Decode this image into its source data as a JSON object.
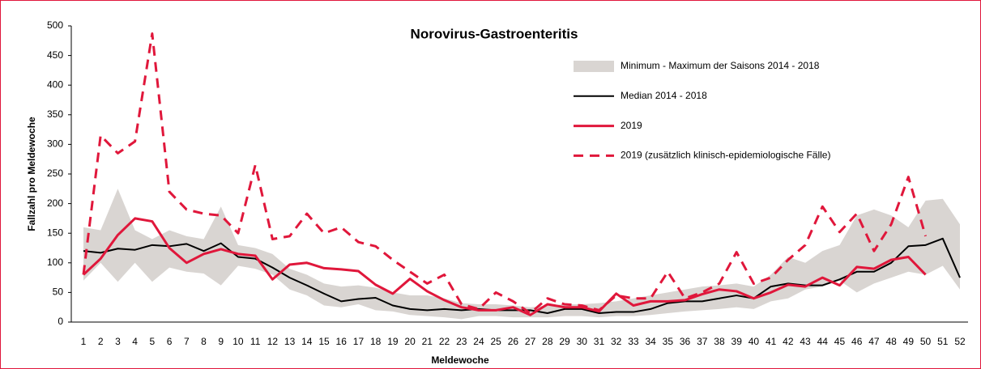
{
  "chart_data": {
    "type": "line",
    "title": "Norovirus-Gastroenteritis",
    "x_label": "Meldewoche",
    "y_label": "Fallzahl pro Meldewoche",
    "categories": [
      "1",
      "2",
      "3",
      "4",
      "5",
      "6",
      "7",
      "8",
      "9",
      "10",
      "11",
      "12",
      "13",
      "14",
      "15",
      "16",
      "17",
      "18",
      "19",
      "20",
      "21",
      "22",
      "23",
      "24",
      "25",
      "26",
      "27",
      "28",
      "29",
      "30",
      "31",
      "32",
      "33",
      "34",
      "35",
      "36",
      "37",
      "38",
      "39",
      "40",
      "41",
      "42",
      "43",
      "44",
      "45",
      "46",
      "47",
      "48",
      "49",
      "50",
      "51",
      "52"
    ],
    "ylim": [
      0,
      500
    ],
    "yticks": [
      0,
      50,
      100,
      150,
      200,
      250,
      300,
      350,
      400,
      450,
      500
    ],
    "series": [
      {
        "name": "Minimum - Maximum der Saisons 2014 - 2018",
        "color": "#d9d5d2",
        "kind": "band",
        "high": [
          160,
          155,
          225,
          155,
          140,
          155,
          145,
          140,
          195,
          130,
          125,
          115,
          90,
          80,
          65,
          60,
          62,
          58,
          50,
          45,
          45,
          40,
          32,
          30,
          30,
          28,
          25,
          28,
          30,
          30,
          32,
          35,
          40,
          45,
          50,
          55,
          60,
          62,
          65,
          60,
          80,
          110,
          100,
          120,
          130,
          180,
          190,
          180,
          160,
          205,
          208,
          165
        ],
        "low": [
          70,
          100,
          68,
          100,
          68,
          92,
          85,
          82,
          62,
          95,
          90,
          80,
          55,
          45,
          28,
          25,
          30,
          20,
          18,
          12,
          10,
          8,
          5,
          10,
          10,
          8,
          8,
          8,
          10,
          10,
          8,
          10,
          10,
          12,
          15,
          18,
          20,
          22,
          25,
          22,
          35,
          40,
          55,
          60,
          70,
          50,
          65,
          75,
          85,
          80,
          95,
          55
        ]
      },
      {
        "name": "Median 2014 - 2018",
        "color": "#000000",
        "values": [
          120,
          117,
          124,
          122,
          130,
          128,
          132,
          120,
          133,
          110,
          107,
          92,
          75,
          62,
          48,
          35,
          39,
          41,
          28,
          22,
          20,
          22,
          20,
          22,
          20,
          20,
          20,
          15,
          22,
          22,
          15,
          17,
          17,
          22,
          32,
          35,
          35,
          40,
          45,
          40,
          60,
          65,
          62,
          62,
          72,
          85,
          85,
          100,
          128,
          130,
          141,
          75
        ]
      },
      {
        "name": "2019",
        "color": "#e0173b",
        "values": [
          80,
          107,
          147,
          175,
          170,
          125,
          100,
          115,
          123,
          115,
          112,
          72,
          97,
          100,
          91,
          89,
          86,
          63,
          48,
          73,
          52,
          37,
          25,
          20,
          20,
          25,
          12,
          30,
          25,
          25,
          18,
          48,
          28,
          35,
          35,
          37,
          47,
          55,
          52,
          40,
          50,
          63,
          60,
          75,
          62,
          93,
          90,
          105,
          110,
          80,
          null,
          null
        ]
      },
      {
        "name": "2019 (zusätzlich klinisch-epidemiologische Fälle)",
        "color": "#e0173b",
        "dashed": true,
        "values": [
          80,
          315,
          285,
          305,
          487,
          220,
          190,
          183,
          180,
          150,
          265,
          140,
          145,
          183,
          150,
          160,
          135,
          128,
          105,
          85,
          65,
          80,
          30,
          22,
          50,
          35,
          15,
          40,
          30,
          28,
          20,
          45,
          40,
          40,
          85,
          40,
          50,
          65,
          118,
          65,
          75,
          105,
          130,
          195,
          152,
          183,
          120,
          165,
          245,
          145,
          null,
          null
        ]
      }
    ]
  }
}
